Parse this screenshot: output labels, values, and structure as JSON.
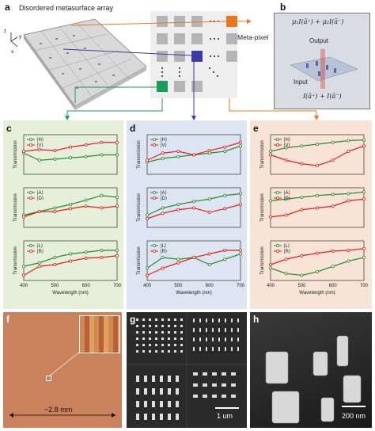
{
  "panel_a": {
    "label": "a",
    "title": "Disordered metasurface array",
    "axes": [
      "z",
      "y",
      "x"
    ],
    "meta_pixel_label": "Meta-pixel"
  },
  "panel_b": {
    "label": "b",
    "top_formula": "μ₁I(ā⁺) + μ₂I(ā⁻)",
    "output_label": "Output",
    "input_label": "Input",
    "bottom_formula": "I(ā⁺) + I(ā⁻)"
  },
  "panel_c": {
    "label": "c",
    "bg": "#e6efd9"
  },
  "panel_d": {
    "label": "d",
    "bg": "#dde5f2"
  },
  "panel_e": {
    "label": "e",
    "bg": "#f8e4d6"
  },
  "panel_f": {
    "label": "f",
    "scale": "~2.8 mm"
  },
  "panel_g": {
    "label": "g",
    "scale": "1 um"
  },
  "panel_h": {
    "label": "h",
    "scale": "200 nm"
  },
  "colors": {
    "green": "#2e8b2e",
    "red": "#e0201b",
    "orange": "#e87722",
    "blue": "#3b3ba8",
    "teal": "#1a9c5a"
  },
  "chart_data": [
    {
      "panel": "c",
      "type": "line",
      "ylabel": "Transmission",
      "series": [
        {
          "name": "|H⟩",
          "x": [
            400,
            450,
            500,
            550,
            600,
            650,
            700
          ],
          "values": [
            0.55,
            0.35,
            0.38,
            0.42,
            0.45,
            0.5,
            0.5
          ]
        },
        {
          "name": "|V⟩",
          "x": [
            400,
            450,
            500,
            550,
            600,
            650,
            700
          ],
          "values": [
            0.6,
            0.65,
            0.62,
            0.72,
            0.78,
            0.85,
            0.85
          ]
        }
      ]
    },
    {
      "panel": "c",
      "type": "line",
      "ylabel": "Transmission",
      "series": [
        {
          "name": "|A⟩",
          "x": [
            400,
            450,
            500,
            550,
            600,
            650,
            700
          ],
          "values": [
            0.3,
            0.4,
            0.5,
            0.6,
            0.72,
            0.85,
            0.8
          ]
        },
        {
          "name": "|D⟩",
          "x": [
            400,
            450,
            500,
            550,
            600,
            650,
            700
          ],
          "values": [
            0.25,
            0.4,
            0.4,
            0.48,
            0.55,
            0.5,
            0.55
          ]
        }
      ]
    },
    {
      "panel": "c",
      "type": "line",
      "ylabel": "Transmission",
      "series": [
        {
          "name": "|L⟩",
          "x": [
            400,
            450,
            500,
            550,
            600,
            650,
            700
          ],
          "values": [
            0.35,
            0.45,
            0.6,
            0.7,
            0.75,
            0.8,
            0.8
          ]
        },
        {
          "name": "|R⟩",
          "x": [
            400,
            450,
            500,
            550,
            600,
            650,
            700
          ],
          "values": [
            0.1,
            0.35,
            0.4,
            0.5,
            0.58,
            0.6,
            0.65
          ]
        }
      ]
    },
    {
      "panel": "d",
      "type": "line",
      "xlabel": "Wavelength (nm)",
      "ylabel": "Transmission",
      "xticks": [
        400,
        500,
        600,
        700
      ],
      "series": [
        {
          "name": "|H⟩",
          "x": [
            400,
            450,
            500,
            550,
            600,
            650,
            700
          ],
          "values": [
            0.3,
            0.4,
            0.45,
            0.5,
            0.55,
            0.6,
            0.75
          ]
        },
        {
          "name": "|V⟩",
          "x": [
            400,
            450,
            500,
            550,
            600,
            650,
            700
          ],
          "values": [
            0.35,
            0.55,
            0.6,
            0.5,
            0.62,
            0.72,
            0.85
          ]
        }
      ]
    },
    {
      "panel": "d",
      "type": "line",
      "ylabel": "Transmission",
      "series": [
        {
          "name": "|A⟩",
          "x": [
            400,
            450,
            500,
            550,
            600,
            650,
            700
          ],
          "values": [
            0.3,
            0.5,
            0.6,
            0.68,
            0.75,
            0.85,
            0.9
          ]
        },
        {
          "name": "|D⟩",
          "x": [
            400,
            450,
            500,
            550,
            600,
            650,
            700
          ],
          "values": [
            0.2,
            0.35,
            0.45,
            0.5,
            0.38,
            0.48,
            0.6
          ]
        }
      ]
    },
    {
      "panel": "d",
      "type": "line",
      "ylabel": "Transmission",
      "series": [
        {
          "name": "|L⟩",
          "x": [
            400,
            450,
            500,
            550,
            600,
            650,
            700
          ],
          "values": [
            0.3,
            0.6,
            0.55,
            0.6,
            0.4,
            0.55,
            0.7
          ]
        },
        {
          "name": "|R⟩",
          "x": [
            400,
            450,
            500,
            550,
            600,
            650,
            700
          ],
          "values": [
            0.1,
            0.3,
            0.45,
            0.6,
            0.7,
            0.8,
            0.8
          ]
        }
      ]
    },
    {
      "panel": "e",
      "type": "line",
      "ylabel": "Transmission",
      "series": [
        {
          "name": "|H⟩",
          "x": [
            400,
            450,
            500,
            550,
            600,
            650,
            700
          ],
          "values": [
            0.6,
            0.7,
            0.75,
            0.8,
            0.85,
            0.9,
            0.92
          ]
        },
        {
          "name": "|V⟩",
          "x": [
            400,
            450,
            500,
            550,
            600,
            650,
            700
          ],
          "values": [
            0.5,
            0.35,
            0.25,
            0.2,
            0.35,
            0.6,
            0.75
          ]
        }
      ]
    },
    {
      "panel": "e",
      "type": "line",
      "ylabel": "Transmission",
      "series": [
        {
          "name": "|A⟩",
          "x": [
            400,
            450,
            500,
            550,
            600,
            650,
            700
          ],
          "values": [
            0.7,
            0.75,
            0.8,
            0.85,
            0.88,
            0.9,
            0.95
          ]
        },
        {
          "name": "|D⟩",
          "x": [
            400,
            450,
            500,
            550,
            600,
            650,
            700
          ],
          "values": [
            0.25,
            0.3,
            0.45,
            0.5,
            0.55,
            0.7,
            0.75
          ]
        }
      ]
    },
    {
      "panel": "e",
      "type": "line",
      "xlabel": "Wavelength (nm)",
      "ylabel": "Transmission",
      "xticks": [
        400,
        500,
        600,
        700
      ],
      "series": [
        {
          "name": "|L⟩",
          "x": [
            400,
            450,
            500,
            550,
            600,
            650,
            700
          ],
          "values": [
            0.3,
            0.15,
            0.1,
            0.2,
            0.35,
            0.5,
            0.6
          ]
        },
        {
          "name": "|R⟩",
          "x": [
            400,
            450,
            500,
            550,
            600,
            650,
            700
          ],
          "values": [
            0.4,
            0.55,
            0.65,
            0.72,
            0.78,
            0.8,
            0.85
          ]
        }
      ]
    }
  ],
  "panel_c_legend": [
    [
      "|H⟩",
      "|V⟩"
    ],
    [
      "|A⟩",
      "|D⟩"
    ],
    [
      "|L⟩",
      "|R⟩"
    ]
  ],
  "x_axis": {
    "label": "Wavelength (nm)",
    "ticks": [
      "400",
      "500",
      "600",
      "700"
    ]
  },
  "y_label": "Transmission"
}
